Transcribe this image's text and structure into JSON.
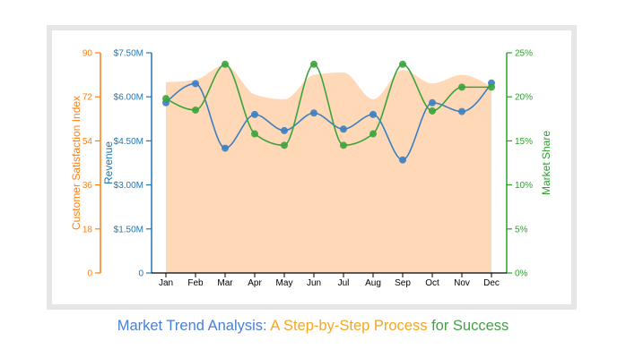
{
  "caption": {
    "part1": "Market Trend Analysis:",
    "part2": "A Step-by-Step Process",
    "part3": "for Success",
    "colors": {
      "part1": "#4a7fd8",
      "part2": "#f5a623",
      "part3": "#43a047"
    }
  },
  "colors": {
    "orange": "#ff7f0e",
    "blue": "#1f77b4",
    "green": "#2ca02c",
    "area_fill": "#ffd9b7",
    "frame": "#e6e6e6",
    "x_axis": "#000000"
  },
  "chart_data": {
    "type": "line",
    "title": "",
    "categories": [
      "Jan",
      "Feb",
      "Mar",
      "Apr",
      "May",
      "Jun",
      "Jul",
      "Aug",
      "Sep",
      "Oct",
      "Nov",
      "Dec"
    ],
    "xlabel": "",
    "grid": false,
    "legend": "none",
    "series": [
      {
        "name": "Customer Satisfaction Index",
        "render": "area",
        "axis": "left-outer",
        "values": [
          78,
          79,
          85,
          73,
          71,
          81,
          82,
          71,
          83,
          77.5,
          81,
          76
        ],
        "ylim": [
          0,
          90
        ],
        "ticks": [
          "0",
          "18",
          "36",
          "54",
          "72",
          "90"
        ],
        "ylabel": "Customer Satisfaction Index"
      },
      {
        "name": "Revenue",
        "render": "line",
        "axis": "left-inner",
        "values": [
          5.8,
          6.45,
          4.25,
          5.4,
          4.85,
          5.45,
          4.9,
          5.4,
          3.85,
          5.8,
          5.5,
          6.47
        ],
        "ylim": [
          0,
          7.5
        ],
        "unit": "$M",
        "ticks": [
          "0",
          "$1.50M",
          "$3.00M",
          "$4.50M",
          "$6.00M",
          "$7.50M"
        ],
        "ylabel": "Revenue"
      },
      {
        "name": "Market Share",
        "render": "line",
        "axis": "right",
        "values": [
          19.8,
          18.5,
          23.7,
          15.8,
          14.5,
          23.7,
          14.5,
          15.8,
          23.7,
          18.4,
          21.1,
          21.1
        ],
        "ylim": [
          0,
          25
        ],
        "unit": "%",
        "ticks": [
          "0%",
          "5%",
          "10%",
          "15%",
          "20%",
          "25%"
        ],
        "ylabel": "Market Share"
      }
    ]
  }
}
